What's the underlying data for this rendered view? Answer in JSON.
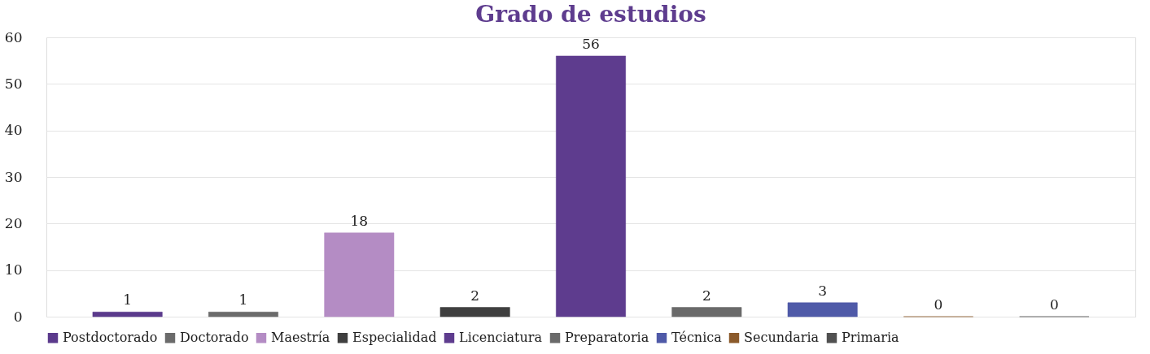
{
  "chart_data": {
    "type": "bar",
    "title": "Grado de estudios",
    "categories": [
      null
    ],
    "series": [
      {
        "name": "Postdoctorado",
        "color": "#5b3a8c",
        "values": [
          1
        ]
      },
      {
        "name": "Doctorado",
        "color": "#6b6b6b",
        "values": [
          1
        ]
      },
      {
        "name": "Maestría",
        "color": "#b48cc4",
        "values": [
          18
        ]
      },
      {
        "name": "Especialidad",
        "color": "#3f3f3f",
        "values": [
          2
        ]
      },
      {
        "name": "Licenciatura",
        "color": "#5e3c8e",
        "values": [
          56
        ]
      },
      {
        "name": "Preparatoria",
        "color": "#6a6a6a",
        "values": [
          2
        ]
      },
      {
        "name": "Técnica",
        "color": "#4f5aa8",
        "values": [
          3
        ]
      },
      {
        "name": "Secundaria",
        "color": "#8b5a2b",
        "values": [
          0
        ]
      },
      {
        "name": "Primaria",
        "color": "#505050",
        "values": [
          0
        ]
      }
    ],
    "ylim": [
      0,
      60
    ],
    "yticks": [
      0,
      10,
      20,
      30,
      40,
      50,
      60
    ],
    "grid": "y",
    "legend": "bottom",
    "data_labels": true,
    "tick_labels": "y"
  }
}
